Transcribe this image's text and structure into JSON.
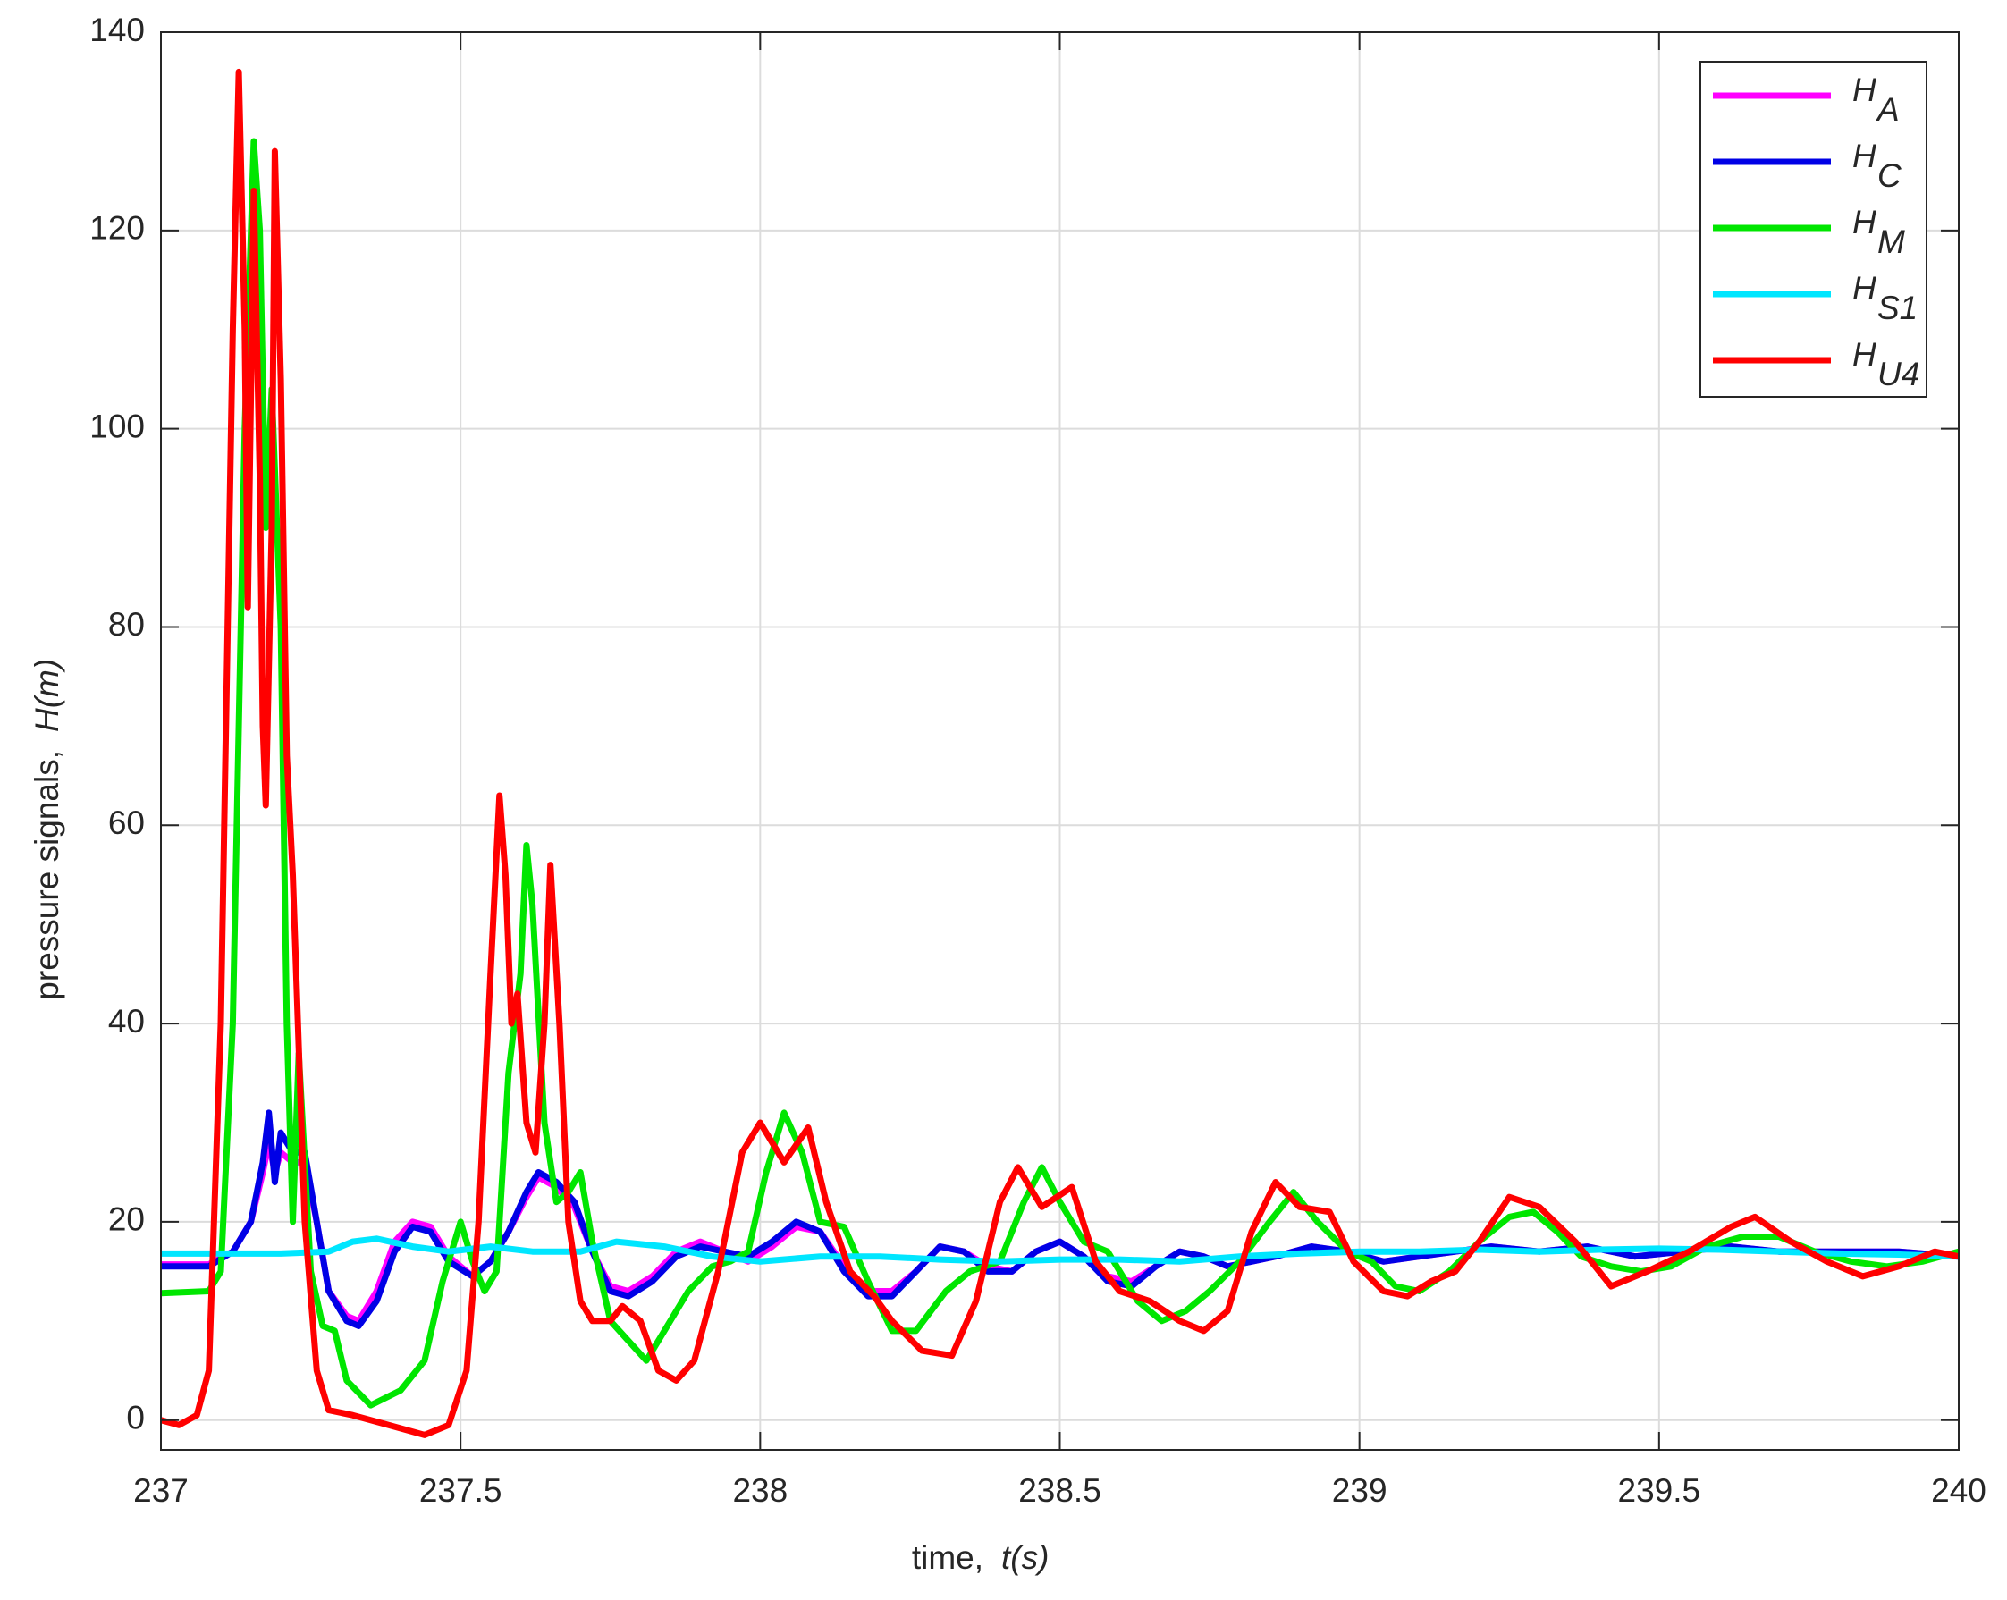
{
  "chart_data": {
    "type": "line",
    "xlabel": "time,",
    "xlabel_var": "t(s)",
    "ylabel": "pressure signals,",
    "ylabel_var": "H(m)",
    "xlim": [
      237,
      240
    ],
    "xticks": [
      237,
      237.5,
      238,
      238.5,
      239,
      239.5,
      240
    ],
    "ylim": [
      -3,
      140
    ],
    "yticks": [
      0,
      20,
      40,
      60,
      80,
      100,
      120,
      140
    ],
    "grid": true,
    "legend": "upper right",
    "series": [
      {
        "name": "H",
        "name_sub": "A",
        "color": "#ff00ff",
        "x": [
          237,
          237.08,
          237.12,
          237.15,
          237.17,
          237.18,
          237.19,
          237.2,
          237.22,
          237.24,
          237.26,
          237.28,
          237.31,
          237.33,
          237.36,
          237.39,
          237.42,
          237.45,
          237.48,
          237.52,
          237.55,
          237.58,
          237.61,
          237.63,
          237.66,
          237.69,
          237.72,
          237.75,
          237.78,
          237.82,
          237.86,
          237.9,
          237.94,
          237.98,
          238.02,
          238.06,
          238.1,
          238.14,
          238.18,
          238.22,
          238.26,
          238.3,
          238.34,
          238.38,
          238.42,
          238.46,
          238.5,
          238.54,
          238.58,
          238.62,
          238.66,
          238.7,
          238.74,
          238.78,
          238.82,
          238.86,
          238.92,
          238.98,
          239.04,
          239.1,
          239.16,
          239.22,
          239.3,
          239.38,
          239.46,
          239.54,
          239.62,
          239.7,
          239.8,
          239.9,
          240
        ],
        "values": [
          15.7,
          15.7,
          17,
          20,
          25,
          28,
          25,
          27,
          26,
          26,
          20,
          13,
          10.5,
          10,
          13,
          18,
          20,
          19.5,
          16.5,
          14.5,
          16,
          19,
          22.5,
          24.5,
          23.5,
          21.5,
          17,
          13.5,
          13,
          14.5,
          17,
          18,
          17,
          16,
          17.5,
          19.5,
          19,
          15.5,
          13,
          13,
          15,
          17.5,
          17,
          15.5,
          15,
          17,
          18,
          16.5,
          14.5,
          14,
          15.5,
          17,
          16.5,
          15.5,
          16,
          16.5,
          17.5,
          17,
          16,
          16.5,
          17,
          17.5,
          17,
          17.5,
          16.5,
          17,
          17.5,
          17,
          17,
          17,
          16.5
        ]
      },
      {
        "name": "H",
        "name_sub": "C",
        "color": "#0000e6",
        "x": [
          237,
          237.08,
          237.12,
          237.15,
          237.17,
          237.18,
          237.19,
          237.2,
          237.22,
          237.24,
          237.26,
          237.28,
          237.31,
          237.33,
          237.36,
          237.39,
          237.42,
          237.45,
          237.48,
          237.52,
          237.55,
          237.58,
          237.61,
          237.63,
          237.66,
          237.69,
          237.72,
          237.75,
          237.78,
          237.82,
          237.86,
          237.9,
          237.94,
          237.98,
          238.02,
          238.06,
          238.1,
          238.14,
          238.18,
          238.22,
          238.26,
          238.3,
          238.34,
          238.38,
          238.42,
          238.46,
          238.5,
          238.54,
          238.58,
          238.62,
          238.66,
          238.7,
          238.74,
          238.78,
          238.82,
          238.86,
          238.92,
          238.98,
          239.04,
          239.1,
          239.16,
          239.22,
          239.3,
          239.38,
          239.46,
          239.54,
          239.62,
          239.7,
          239.8,
          239.9,
          240
        ],
        "values": [
          15.5,
          15.5,
          17,
          20,
          26,
          31,
          24,
          29,
          27,
          27,
          20,
          13,
          10,
          9.5,
          12,
          17,
          19.5,
          19,
          16,
          14.5,
          16,
          19,
          23,
          25,
          24,
          22,
          17,
          13,
          12.5,
          14,
          16.5,
          17.5,
          17,
          16.5,
          18,
          20,
          19,
          15,
          12.5,
          12.5,
          15,
          17.5,
          17,
          15,
          15,
          17,
          18,
          16.5,
          14,
          13.5,
          15.5,
          17,
          16.5,
          15.5,
          16,
          16.5,
          17.5,
          17,
          16,
          16.5,
          17,
          17.5,
          17,
          17.5,
          16.5,
          17,
          17.5,
          17,
          17,
          17,
          16.5
        ]
      },
      {
        "name": "H",
        "name_sub": "M",
        "color": "#00e600",
        "x": [
          237,
          237.08,
          237.1,
          237.12,
          237.14,
          237.155,
          237.165,
          237.175,
          237.185,
          237.2,
          237.21,
          237.22,
          237.23,
          237.25,
          237.27,
          237.29,
          237.31,
          237.35,
          237.4,
          237.44,
          237.47,
          237.5,
          237.52,
          237.54,
          237.56,
          237.58,
          237.6,
          237.61,
          237.62,
          237.64,
          237.66,
          237.68,
          237.7,
          237.72,
          237.75,
          237.78,
          237.81,
          237.84,
          237.88,
          237.92,
          237.95,
          237.98,
          238.01,
          238.04,
          238.07,
          238.1,
          238.14,
          238.18,
          238.22,
          238.26,
          238.31,
          238.35,
          238.4,
          238.44,
          238.47,
          238.5,
          238.54,
          238.58,
          238.63,
          238.67,
          238.71,
          238.75,
          238.8,
          238.85,
          238.89,
          238.93,
          238.98,
          239.02,
          239.06,
          239.1,
          239.15,
          239.2,
          239.25,
          239.29,
          239.33,
          239.37,
          239.42,
          239.47,
          239.52,
          239.58,
          239.64,
          239.7,
          239.76,
          239.82,
          239.88,
          239.94,
          240
        ],
        "values": [
          12.8,
          13,
          15,
          40,
          100,
          129,
          120,
          90,
          104,
          80,
          40,
          20,
          37,
          15,
          9.5,
          9,
          4,
          1.5,
          3,
          6,
          14,
          20,
          16,
          13,
          15,
          35,
          45,
          58,
          52,
          30,
          22,
          23,
          25,
          18,
          10,
          8,
          6,
          9,
          13,
          15.5,
          16,
          17,
          25,
          31,
          27,
          20,
          19.5,
          14,
          9,
          9,
          13,
          15,
          16,
          22,
          25.5,
          22,
          18,
          17,
          12,
          10,
          11,
          13,
          16,
          20,
          23,
          20,
          17,
          16,
          13.5,
          13,
          15,
          18,
          20.5,
          21,
          19,
          16.5,
          15.5,
          15,
          15.5,
          17.5,
          18.5,
          18.5,
          17,
          16,
          15.5,
          16,
          17
        ]
      },
      {
        "name": "H",
        "name_sub": "S1",
        "color": "#00e6ff",
        "x": [
          237,
          237.2,
          237.28,
          237.32,
          237.36,
          237.42,
          237.48,
          237.55,
          237.62,
          237.7,
          237.76,
          237.84,
          237.92,
          238,
          238.1,
          238.2,
          238.3,
          238.4,
          238.5,
          238.6,
          238.7,
          238.8,
          238.9,
          239,
          239.1,
          239.2,
          239.3,
          239.4,
          239.5,
          239.6,
          239.7,
          239.8,
          239.9,
          240
        ],
        "values": [
          16.8,
          16.8,
          17,
          18,
          18.3,
          17.5,
          17,
          17.5,
          17,
          17,
          18,
          17.5,
          16.5,
          16,
          16.5,
          16.5,
          16.2,
          16,
          16.2,
          16.2,
          16,
          16.5,
          16.8,
          17,
          17,
          17.2,
          17,
          17.2,
          17.3,
          17.2,
          17,
          16.8,
          16.7,
          16.5
        ]
      },
      {
        "name": "H",
        "name_sub": "U4",
        "color": "#ff0000",
        "x": [
          237,
          237.03,
          237.06,
          237.08,
          237.1,
          237.12,
          237.13,
          237.14,
          237.145,
          237.155,
          237.165,
          237.17,
          237.175,
          237.185,
          237.19,
          237.2,
          237.21,
          237.22,
          237.24,
          237.26,
          237.28,
          237.32,
          237.38,
          237.44,
          237.48,
          237.51,
          237.53,
          237.55,
          237.565,
          237.575,
          237.585,
          237.595,
          237.61,
          237.625,
          237.64,
          237.65,
          237.665,
          237.68,
          237.7,
          237.72,
          237.75,
          237.77,
          237.8,
          237.83,
          237.86,
          237.89,
          237.93,
          237.97,
          238,
          238.04,
          238.08,
          238.11,
          238.15,
          238.19,
          238.22,
          238.27,
          238.32,
          238.36,
          238.4,
          238.43,
          238.47,
          238.52,
          238.56,
          238.6,
          238.65,
          238.7,
          238.74,
          238.78,
          238.82,
          238.86,
          238.9,
          238.95,
          238.99,
          239.04,
          239.08,
          239.12,
          239.16,
          239.2,
          239.25,
          239.3,
          239.36,
          239.42,
          239.48,
          239.55,
          239.62,
          239.66,
          239.72,
          239.78,
          239.84,
          239.9,
          239.96,
          240
        ],
        "values": [
          0,
          -0.5,
          0.5,
          5,
          40,
          110,
          136,
          110,
          82,
          124,
          95,
          70,
          62,
          90,
          128,
          105,
          67,
          55,
          20,
          5,
          1,
          0.5,
          -0.5,
          -1.5,
          -0.5,
          5,
          20,
          45,
          63,
          55,
          40,
          43,
          30,
          27,
          40,
          56,
          40,
          20,
          12,
          10,
          10,
          11.5,
          10,
          5,
          4,
          6,
          15,
          27,
          30,
          26,
          29.5,
          22,
          15,
          12.5,
          10,
          7,
          6.5,
          12,
          22,
          25.5,
          21.5,
          23.5,
          16,
          13,
          12,
          10,
          9,
          11,
          19,
          24,
          21.5,
          21,
          16,
          13,
          12.5,
          14,
          15,
          18,
          22.5,
          21.5,
          18,
          13.5,
          15,
          17,
          19.5,
          20.5,
          18,
          16,
          14.5,
          15.5,
          17,
          16.5
        ]
      }
    ]
  }
}
